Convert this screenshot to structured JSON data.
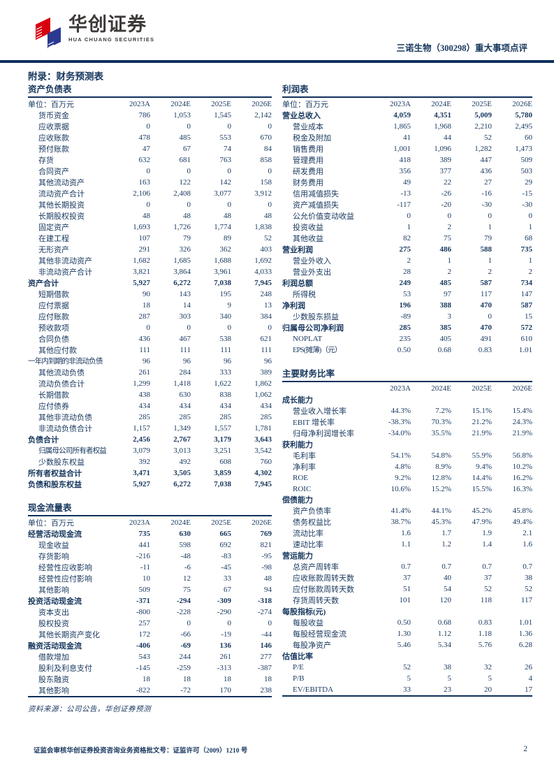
{
  "header": {
    "brand_cn": "华创证券",
    "brand_en": "HUA CHUANG SECURITIES",
    "report_title": "三诺生物（300298）重大事项点评"
  },
  "page": {
    "appendix_title": "附录：财务预测表",
    "source_note": "资料来源：公司公告，华创证券预测",
    "footer_license": "证监会审核华创证券投资咨询业务资格批文号：证监许可（2009）1210 号",
    "page_number": "2"
  },
  "colors": {
    "text_navy": "#17375E",
    "rule_navy": "#10305c",
    "brand_red": "#D7000F",
    "brand_blue": "#2B3990",
    "brand_gray": "#3E3A39"
  },
  "tables": {
    "balance_sheet": {
      "title": "资产负债表",
      "unit_label": "单位：百万元",
      "years": [
        "2023A",
        "2024E",
        "2025E",
        "2026E"
      ],
      "bottom_border": false,
      "rows": [
        {
          "label": "货币资金",
          "style": "indent",
          "values": [
            "786",
            "1,053",
            "1,545",
            "2,142"
          ]
        },
        {
          "label": "应收票据",
          "style": "indent",
          "values": [
            "0",
            "0",
            "0",
            "0"
          ]
        },
        {
          "label": "应收账款",
          "style": "indent",
          "values": [
            "478",
            "485",
            "553",
            "670"
          ]
        },
        {
          "label": "预付账款",
          "style": "indent",
          "values": [
            "47",
            "67",
            "74",
            "84"
          ]
        },
        {
          "label": "存货",
          "style": "indent",
          "values": [
            "632",
            "681",
            "763",
            "858"
          ]
        },
        {
          "label": "合同资产",
          "style": "indent",
          "values": [
            "0",
            "0",
            "0",
            "0"
          ]
        },
        {
          "label": "其他流动资产",
          "style": "indent",
          "values": [
            "163",
            "122",
            "142",
            "158"
          ]
        },
        {
          "label": "流动资产合计",
          "style": "indent",
          "values": [
            "2,106",
            "2,408",
            "3,077",
            "3,912"
          ]
        },
        {
          "label": "其他长期投资",
          "style": "indent",
          "values": [
            "0",
            "0",
            "0",
            "0"
          ]
        },
        {
          "label": "长期股权投资",
          "style": "indent",
          "values": [
            "48",
            "48",
            "48",
            "48"
          ]
        },
        {
          "label": "固定资产",
          "style": "indent",
          "values": [
            "1,693",
            "1,726",
            "1,774",
            "1,838"
          ]
        },
        {
          "label": "在建工程",
          "style": "indent",
          "values": [
            "107",
            "79",
            "89",
            "52"
          ]
        },
        {
          "label": "无形资产",
          "style": "indent",
          "values": [
            "291",
            "326",
            "362",
            "403"
          ]
        },
        {
          "label": "其他非流动资产",
          "style": "indent",
          "values": [
            "1,682",
            "1,685",
            "1,688",
            "1,692"
          ]
        },
        {
          "label": "非流动资产合计",
          "style": "indent",
          "values": [
            "3,821",
            "3,864",
            "3,961",
            "4,033"
          ]
        },
        {
          "label": "资产合计",
          "style": "bold",
          "values": [
            "5,927",
            "6,272",
            "7,038",
            "7,945"
          ]
        },
        {
          "label": "短期借款",
          "style": "indent",
          "values": [
            "90",
            "143",
            "195",
            "248"
          ]
        },
        {
          "label": "应付票据",
          "style": "indent",
          "values": [
            "18",
            "14",
            "9",
            "13"
          ]
        },
        {
          "label": "应付账款",
          "style": "indent",
          "values": [
            "287",
            "303",
            "340",
            "384"
          ]
        },
        {
          "label": "预收款项",
          "style": "indent",
          "values": [
            "0",
            "0",
            "0",
            "0"
          ]
        },
        {
          "label": "合同负债",
          "style": "indent",
          "values": [
            "436",
            "467",
            "538",
            "621"
          ]
        },
        {
          "label": "其他应付款",
          "style": "indent",
          "values": [
            "111",
            "111",
            "111",
            "111"
          ]
        },
        {
          "label": "一年内到期的非流动负债",
          "style": "flush",
          "values": [
            "96",
            "96",
            "96",
            "96"
          ]
        },
        {
          "label": "其他流动负债",
          "style": "indent",
          "values": [
            "261",
            "284",
            "333",
            "389"
          ]
        },
        {
          "label": "流动负债合计",
          "style": "indent",
          "values": [
            "1,299",
            "1,418",
            "1,622",
            "1,862"
          ]
        },
        {
          "label": "长期借款",
          "style": "indent",
          "values": [
            "438",
            "630",
            "838",
            "1,062"
          ]
        },
        {
          "label": "应付债券",
          "style": "indent",
          "values": [
            "434",
            "434",
            "434",
            "434"
          ]
        },
        {
          "label": "其他非流动负债",
          "style": "indent",
          "values": [
            "285",
            "285",
            "285",
            "285"
          ]
        },
        {
          "label": "非流动负债合计",
          "style": "indent",
          "values": [
            "1,157",
            "1,349",
            "1,557",
            "1,781"
          ]
        },
        {
          "label": "负债合计",
          "style": "bold",
          "values": [
            "2,456",
            "2,767",
            "3,179",
            "3,643"
          ]
        },
        {
          "label": "归属母公司所有者权益",
          "style": "indent",
          "values": [
            "3,079",
            "3,013",
            "3,251",
            "3,542"
          ]
        },
        {
          "label": "少数股东权益",
          "style": "indent",
          "values": [
            "392",
            "492",
            "608",
            "760"
          ]
        },
        {
          "label": "所有者权益合计",
          "style": "bold",
          "values": [
            "3,471",
            "3,505",
            "3,859",
            "4,302"
          ]
        },
        {
          "label": "负债和股东权益",
          "style": "bold",
          "values": [
            "5,927",
            "6,272",
            "7,038",
            "7,945"
          ]
        }
      ]
    },
    "cash_flow": {
      "title": "现金流量表",
      "unit_label": "单位：百万元",
      "years": [
        "2023A",
        "2024E",
        "2025E",
        "2026E"
      ],
      "bottom_border": true,
      "rows": [
        {
          "label": "经营活动现金流",
          "style": "bold",
          "values": [
            "735",
            "630",
            "665",
            "769"
          ]
        },
        {
          "label": "现金收益",
          "style": "indent",
          "values": [
            "441",
            "598",
            "692",
            "821"
          ]
        },
        {
          "label": "存货影响",
          "style": "indent",
          "values": [
            "-216",
            "-48",
            "-83",
            "-95"
          ]
        },
        {
          "label": "经营性应收影响",
          "style": "indent",
          "values": [
            "-11",
            "-6",
            "-45",
            "-98"
          ]
        },
        {
          "label": "经营性应付影响",
          "style": "indent",
          "values": [
            "10",
            "12",
            "33",
            "48"
          ]
        },
        {
          "label": "其他影响",
          "style": "indent",
          "values": [
            "509",
            "75",
            "67",
            "94"
          ]
        },
        {
          "label": "投资活动现金流",
          "style": "bold",
          "values": [
            "-371",
            "-294",
            "-309",
            "-318"
          ]
        },
        {
          "label": "资本支出",
          "style": "indent",
          "values": [
            "-800",
            "-228",
            "-290",
            "-274"
          ]
        },
        {
          "label": "股权投资",
          "style": "indent",
          "values": [
            "257",
            "0",
            "0",
            "0"
          ]
        },
        {
          "label": "其他长期资产变化",
          "style": "indent",
          "values": [
            "172",
            "-66",
            "-19",
            "-44"
          ]
        },
        {
          "label": "融资活动现金流",
          "style": "bold",
          "values": [
            "-406",
            "-69",
            "136",
            "146"
          ]
        },
        {
          "label": "借款增加",
          "style": "indent",
          "values": [
            "543",
            "244",
            "261",
            "277"
          ]
        },
        {
          "label": "股利及利息支付",
          "style": "indent",
          "values": [
            "-145",
            "-259",
            "-313",
            "-387"
          ]
        },
        {
          "label": "股东融资",
          "style": "indent",
          "values": [
            "18",
            "18",
            "18",
            "18"
          ]
        },
        {
          "label": "其他影响",
          "style": "indent",
          "values": [
            "-822",
            "-72",
            "170",
            "238"
          ]
        }
      ]
    },
    "income_statement": {
      "title": "利润表",
      "unit_label": "单位：百万元",
      "years": [
        "2023A",
        "2024E",
        "2025E",
        "2026E"
      ],
      "bottom_border": false,
      "rows": [
        {
          "label": "营业总收入",
          "style": "bold",
          "values": [
            "4,059",
            "4,351",
            "5,009",
            "5,780"
          ]
        },
        {
          "label": "营业成本",
          "style": "indent",
          "values": [
            "1,865",
            "1,968",
            "2,210",
            "2,495"
          ]
        },
        {
          "label": "税金及附加",
          "style": "indent",
          "values": [
            "41",
            "44",
            "52",
            "60"
          ]
        },
        {
          "label": "销售费用",
          "style": "indent",
          "values": [
            "1,001",
            "1,096",
            "1,282",
            "1,473"
          ]
        },
        {
          "label": "管理费用",
          "style": "indent",
          "values": [
            "418",
            "389",
            "447",
            "509"
          ]
        },
        {
          "label": "研发费用",
          "style": "indent",
          "values": [
            "356",
            "377",
            "436",
            "503"
          ]
        },
        {
          "label": "财务费用",
          "style": "indent",
          "values": [
            "49",
            "22",
            "27",
            "29"
          ]
        },
        {
          "label": "信用减值损失",
          "style": "indent",
          "values": [
            "-13",
            "-26",
            "-16",
            "-15"
          ]
        },
        {
          "label": "资产减值损失",
          "style": "indent",
          "values": [
            "-117",
            "-20",
            "-30",
            "-30"
          ]
        },
        {
          "label": "公允价值变动收益",
          "style": "indent",
          "values": [
            "0",
            "0",
            "0",
            "0"
          ]
        },
        {
          "label": "投资收益",
          "style": "indent",
          "values": [
            "1",
            "2",
            "1",
            "1"
          ]
        },
        {
          "label": "其他收益",
          "style": "indent",
          "values": [
            "82",
            "75",
            "79",
            "68"
          ]
        },
        {
          "label": "营业利润",
          "style": "bold",
          "values": [
            "275",
            "486",
            "588",
            "735"
          ]
        },
        {
          "label": "营业外收入",
          "style": "indent",
          "values": [
            "2",
            "1",
            "1",
            "1"
          ]
        },
        {
          "label": "营业外支出",
          "style": "indent",
          "values": [
            "28",
            "2",
            "2",
            "2"
          ]
        },
        {
          "label": "利润总额",
          "style": "bold",
          "values": [
            "249",
            "485",
            "587",
            "734"
          ]
        },
        {
          "label": "所得税",
          "style": "indent",
          "values": [
            "53",
            "97",
            "117",
            "147"
          ]
        },
        {
          "label": "净利润",
          "style": "bold",
          "values": [
            "196",
            "388",
            "470",
            "587"
          ]
        },
        {
          "label": "少数股东损益",
          "style": "indent",
          "values": [
            "-89",
            "3",
            "0",
            "15"
          ]
        },
        {
          "label": "归属母公司净利润",
          "style": "bold",
          "values": [
            "285",
            "385",
            "470",
            "572"
          ]
        },
        {
          "label": "NOPLAT",
          "style": "indent",
          "values": [
            "235",
            "405",
            "491",
            "610"
          ]
        },
        {
          "label": "EPS(摊薄)（元）",
          "style": "indent",
          "values": [
            "0.50",
            "0.68",
            "0.83",
            "1.01"
          ]
        }
      ]
    },
    "ratios": {
      "title": "主要财务比率",
      "unit_label": "",
      "years": [
        "2023A",
        "2024E",
        "2025E",
        "2026E"
      ],
      "bottom_border": true,
      "rows": [
        {
          "label": "成长能力",
          "style": "section",
          "values": []
        },
        {
          "label": "营业收入增长率",
          "style": "indent",
          "values": [
            "44.3%",
            "7.2%",
            "15.1%",
            "15.4%"
          ]
        },
        {
          "label": "EBIT 增长率",
          "style": "indent",
          "values": [
            "-38.3%",
            "70.3%",
            "21.2%",
            "24.3%"
          ]
        },
        {
          "label": "归母净利润增长率",
          "style": "indent",
          "values": [
            "-34.0%",
            "35.5%",
            "21.9%",
            "21.9%"
          ]
        },
        {
          "label": "获利能力",
          "style": "section",
          "values": []
        },
        {
          "label": "毛利率",
          "style": "indent",
          "values": [
            "54.1%",
            "54.8%",
            "55.9%",
            "56.8%"
          ]
        },
        {
          "label": "净利率",
          "style": "indent",
          "values": [
            "4.8%",
            "8.9%",
            "9.4%",
            "10.2%"
          ]
        },
        {
          "label": "ROE",
          "style": "indent",
          "values": [
            "9.2%",
            "12.8%",
            "14.4%",
            "16.2%"
          ]
        },
        {
          "label": "ROIC",
          "style": "indent",
          "values": [
            "10.6%",
            "15.2%",
            "15.5%",
            "16.3%"
          ]
        },
        {
          "label": "偿债能力",
          "style": "section",
          "values": []
        },
        {
          "label": "资产负债率",
          "style": "indent",
          "values": [
            "41.4%",
            "44.1%",
            "45.2%",
            "45.8%"
          ]
        },
        {
          "label": "债务权益比",
          "style": "indent",
          "values": [
            "38.7%",
            "45.3%",
            "47.9%",
            "49.4%"
          ]
        },
        {
          "label": "流动比率",
          "style": "indent",
          "values": [
            "1.6",
            "1.7",
            "1.9",
            "2.1"
          ]
        },
        {
          "label": "速动比率",
          "style": "indent",
          "values": [
            "1.1",
            "1.2",
            "1.4",
            "1.6"
          ]
        },
        {
          "label": "营运能力",
          "style": "section",
          "values": []
        },
        {
          "label": "总资产周转率",
          "style": "indent",
          "values": [
            "0.7",
            "0.7",
            "0.7",
            "0.7"
          ]
        },
        {
          "label": "应收账款周转天数",
          "style": "indent",
          "values": [
            "37",
            "40",
            "37",
            "38"
          ]
        },
        {
          "label": "应付账款周转天数",
          "style": "indent",
          "values": [
            "51",
            "54",
            "52",
            "52"
          ]
        },
        {
          "label": "存货周转天数",
          "style": "indent",
          "values": [
            "101",
            "120",
            "118",
            "117"
          ]
        },
        {
          "label": "每股指标(元)",
          "style": "section",
          "values": []
        },
        {
          "label": "每股收益",
          "style": "indent",
          "values": [
            "0.50",
            "0.68",
            "0.83",
            "1.01"
          ]
        },
        {
          "label": "每股经营现金流",
          "style": "indent",
          "values": [
            "1.30",
            "1.12",
            "1.18",
            "1.36"
          ]
        },
        {
          "label": "每股净资产",
          "style": "indent",
          "values": [
            "5.46",
            "5.34",
            "5.76",
            "6.28"
          ]
        },
        {
          "label": "估值比率",
          "style": "section",
          "values": []
        },
        {
          "label": "P/E",
          "style": "indent",
          "values": [
            "52",
            "38",
            "32",
            "26"
          ]
        },
        {
          "label": "P/B",
          "style": "indent",
          "values": [
            "5",
            "5",
            "5",
            "4"
          ]
        },
        {
          "label": "EV/EBITDA",
          "style": "indent",
          "values": [
            "33",
            "23",
            "20",
            "17"
          ]
        }
      ]
    }
  }
}
